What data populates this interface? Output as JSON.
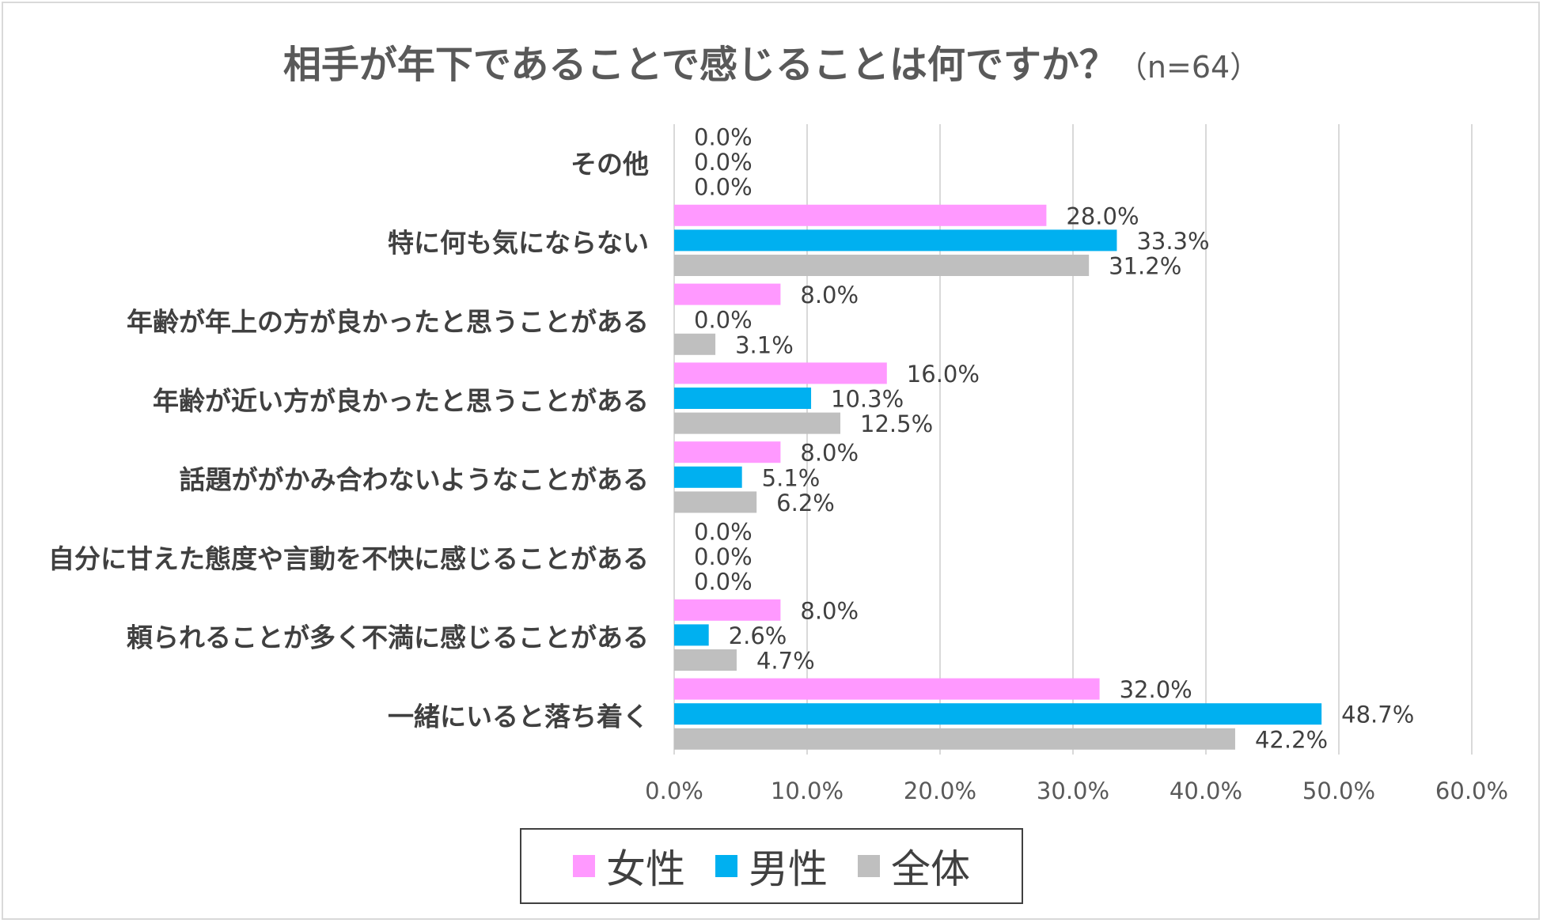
{
  "chart_data": {
    "type": "bar",
    "orientation": "horizontal",
    "title": "相手が年下であることで感じることは何ですか？",
    "subtitle": "（n=64）",
    "categories": [
      "その他",
      "特に何も気にならない",
      "年齢が年上の方が良かったと思うことがある",
      "年齢が近い方が良かったと思うことがある",
      "話題ががかみ合わないようなことがある",
      "自分に甘えた態度や言動を不快に感じることがある",
      "頼られることが多く不満に感じることがある",
      "一緒にいると落ち着く"
    ],
    "series": [
      {
        "name": "女性",
        "color": "#ff99ff",
        "values": [
          0.0,
          28.0,
          8.0,
          16.0,
          8.0,
          0.0,
          8.0,
          32.0
        ],
        "labels": [
          "0.0%",
          "28.0%",
          "8.0%",
          "16.0%",
          "8.0%",
          "0.0%",
          "8.0%",
          "32.0%"
        ]
      },
      {
        "name": "男性",
        "color": "#00b0f0",
        "values": [
          0.0,
          33.3,
          0.0,
          10.3,
          5.1,
          0.0,
          2.6,
          48.7
        ],
        "labels": [
          "0.0%",
          "33.3%",
          "0.0%",
          "10.3%",
          "5.1%",
          "0.0%",
          "2.6%",
          "48.7%"
        ]
      },
      {
        "name": "全体",
        "color": "#bfbfbf",
        "values": [
          0.0,
          31.2,
          3.1,
          12.5,
          6.2,
          0.0,
          4.7,
          42.2
        ],
        "labels": [
          "0.0%",
          "31.2%",
          "3.1%",
          "12.5%",
          "6.2%",
          "0.0%",
          "4.7%",
          "42.2%"
        ]
      }
    ],
    "xlim": [
      0,
      60
    ],
    "xticks": [
      0,
      10,
      20,
      30,
      40,
      50,
      60
    ],
    "xtick_labels": [
      "0.0%",
      "10.0%",
      "20.0%",
      "30.0%",
      "40.0%",
      "50.0%",
      "60.0%"
    ],
    "grid": true,
    "legend_position": "bottom"
  }
}
